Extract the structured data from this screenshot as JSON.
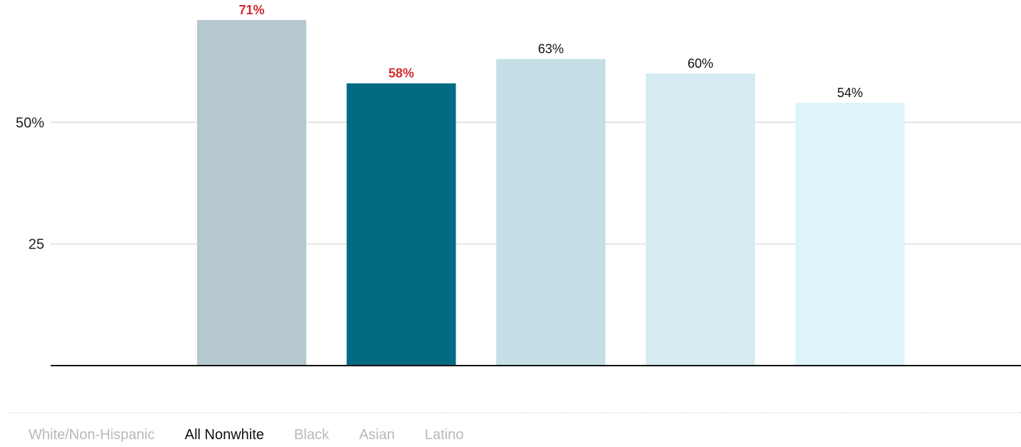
{
  "chart_data": {
    "type": "bar",
    "categories": [
      "White/Non-Hispanic",
      "All Nonwhite",
      "Black",
      "Asian",
      "Latino"
    ],
    "values": [
      71,
      58,
      63,
      60,
      54
    ],
    "value_labels": [
      "71%",
      "58%",
      "63%",
      "60%",
      "54%"
    ],
    "highlighted": [
      true,
      true,
      false,
      false,
      false
    ],
    "ylim": [
      0,
      75
    ],
    "yticks": [
      25,
      50
    ],
    "ytick_labels": [
      "25",
      "50%"
    ],
    "grid": true,
    "colors": [
      "#b5c8cf",
      "#046a84",
      "#c5dfe7",
      "#d4ebf2",
      "#def4fb"
    ],
    "label_colors": {
      "highlight": "#d12b2f",
      "normal": "#111111"
    }
  },
  "legend": {
    "items": [
      "White/Non-Hispanic",
      "All Nonwhite",
      "Black",
      "Asian",
      "Latino"
    ],
    "active_index": 1
  }
}
